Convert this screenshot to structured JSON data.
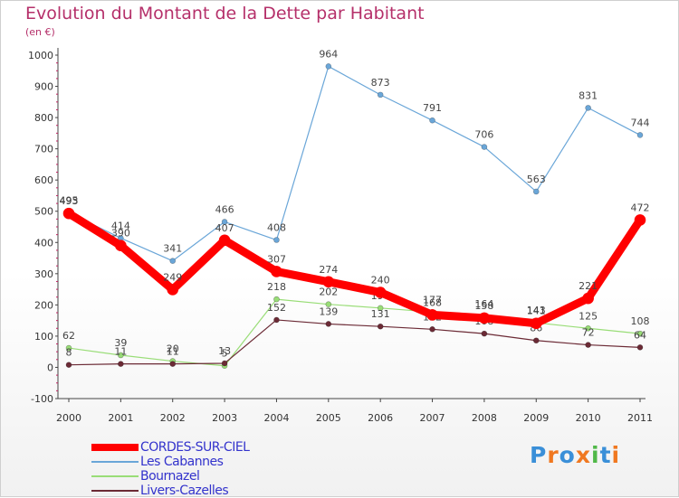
{
  "chart_data": {
    "type": "line",
    "title": "Evolution du Montant de la Dette par Habitant",
    "subtitle": "(en €)",
    "x": [
      "2000",
      "2001",
      "2002",
      "2003",
      "2004",
      "2005",
      "2006",
      "2007",
      "2008",
      "2009",
      "2010",
      "2011"
    ],
    "ylim": [
      -100,
      1000
    ],
    "yticks": [
      -100,
      0,
      100,
      200,
      300,
      400,
      500,
      600,
      700,
      800,
      900,
      1000
    ],
    "grid": false,
    "legend_position": "bottom-left",
    "series": [
      {
        "name": "CORDES-SUR-CIEL",
        "color": "#ff0000",
        "values": [
          493,
          390,
          249,
          407,
          307,
          274,
          240,
          168,
          158,
          141,
          221,
          472
        ]
      },
      {
        "name": "Les Cabannes",
        "color": "#6aa6d8",
        "values": [
          495,
          414,
          341,
          466,
          408,
          964,
          873,
          791,
          706,
          563,
          831,
          744
        ]
      },
      {
        "name": "Bournazel",
        "color": "#99dd77",
        "values": [
          62,
          39,
          20,
          5,
          218,
          202,
          190,
          177,
          164,
          143,
          125,
          108
        ]
      },
      {
        "name": "Livers-Cazelles",
        "color": "#6b2a35",
        "values": [
          8,
          11,
          11,
          13,
          152,
          139,
          131,
          122,
          108,
          86,
          72,
          64
        ]
      }
    ]
  },
  "logo": {
    "text": "Proxiti"
  }
}
